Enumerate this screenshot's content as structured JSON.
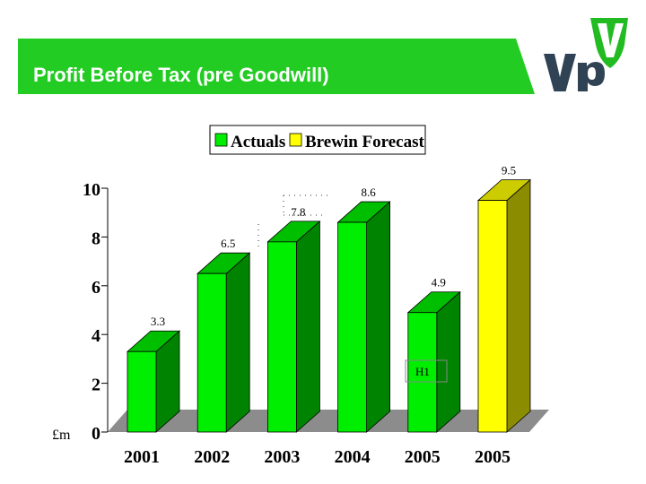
{
  "header": {
    "title": "Profit Before Tax (pre Goodwill)",
    "banner_color": "#22cc22",
    "logo_text": "Vp"
  },
  "chart_data": {
    "type": "bar",
    "categories": [
      "2001",
      "2002",
      "2003",
      "2004",
      "2005",
      "2005"
    ],
    "series": [
      {
        "name": "Actuals",
        "color": "#00ee00",
        "values": [
          3.3,
          6.5,
          7.8,
          8.6,
          4.9,
          null
        ]
      },
      {
        "name": "Brewin Forecast",
        "color": "#ffff00",
        "values": [
          null,
          null,
          null,
          null,
          null,
          9.5
        ]
      }
    ],
    "data_labels": [
      "3.3",
      "6.5",
      "7.8",
      "8.6",
      "4.9",
      "9.5"
    ],
    "annotation": "H1",
    "ylabel": "£m",
    "ylim": [
      0,
      10
    ],
    "yticks": [
      0,
      2,
      4,
      6,
      8,
      10
    ],
    "legend_position": "top-center",
    "grid": false,
    "style": "3d"
  }
}
